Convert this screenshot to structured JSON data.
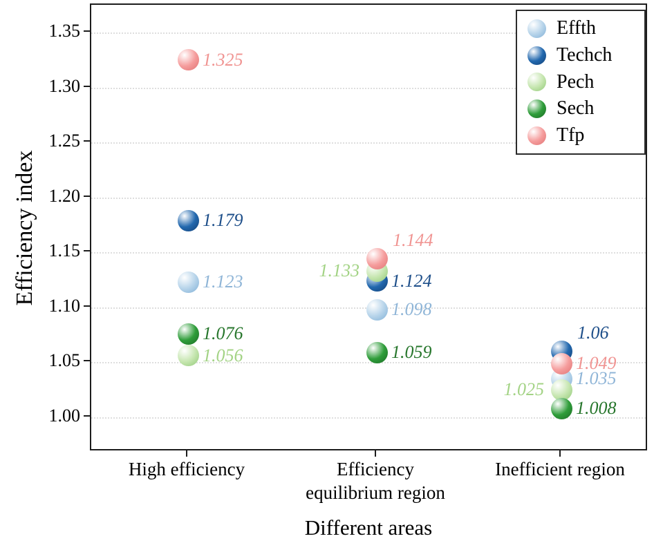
{
  "figure": {
    "ylabel": "Efficiency index",
    "xlabel": "Different areas"
  },
  "chart_data": {
    "type": "scatter",
    "title": "",
    "xlabel": "Different areas",
    "ylabel": "Efficiency index",
    "ylim": [
      0.975,
      1.375
    ],
    "grid": "dotted-horizontal",
    "legend_position": "top-right",
    "yticks": [
      {
        "v": 1.0,
        "label": "1.00"
      },
      {
        "v": 1.05,
        "label": "1.05"
      },
      {
        "v": 1.1,
        "label": "1.10"
      },
      {
        "v": 1.15,
        "label": "1.15"
      },
      {
        "v": 1.2,
        "label": "1.20"
      },
      {
        "v": 1.25,
        "label": "1.25"
      },
      {
        "v": 1.3,
        "label": "1.30"
      },
      {
        "v": 1.35,
        "label": "1.35"
      }
    ],
    "categories": [
      {
        "lines": "High efficiency"
      },
      {
        "lines": "Efficiency\nequilibrium region"
      },
      {
        "lines": "Inefficient region"
      }
    ],
    "series": [
      {
        "name": "Effth",
        "color": "#b7d4ea",
        "edge": "#7fafd6",
        "label_color": "#8fb5d7",
        "values": [
          1.123,
          1.098,
          1.035
        ],
        "labels": [
          "1.123",
          "1.098",
          "1.035"
        ],
        "label_pos": [
          "r",
          "r",
          "r"
        ]
      },
      {
        "name": "Techch",
        "color": "#2268ae",
        "edge": "#123f74",
        "label_color": "#1d4e89",
        "values": [
          1.179,
          1.124,
          1.06
        ],
        "labels": [
          "1.179",
          "1.124",
          "1.06"
        ],
        "label_pos": [
          "r",
          "r",
          "ra"
        ]
      },
      {
        "name": "Pech",
        "color": "#c6e6b0",
        "edge": "#90c876",
        "label_color": "#a3d385",
        "values": [
          1.056,
          1.133,
          1.025
        ],
        "labels": [
          "1.056",
          "1.133",
          "1.025"
        ],
        "label_pos": [
          "r",
          "l",
          "l"
        ]
      },
      {
        "name": "Sech",
        "color": "#2f9d3a",
        "edge": "#1b6b24",
        "label_color": "#27762c",
        "values": [
          1.076,
          1.059,
          1.008
        ],
        "labels": [
          "1.076",
          "1.059",
          "1.008"
        ],
        "label_pos": [
          "r",
          "r",
          "r"
        ]
      },
      {
        "name": "Tfp",
        "color": "#f59d9d",
        "edge": "#df7272",
        "label_color": "#f09492",
        "values": [
          1.325,
          1.144,
          1.049
        ],
        "labels": [
          "1.325",
          "1.144",
          "1.049"
        ],
        "label_pos": [
          "r",
          "ra",
          "r"
        ]
      }
    ]
  }
}
